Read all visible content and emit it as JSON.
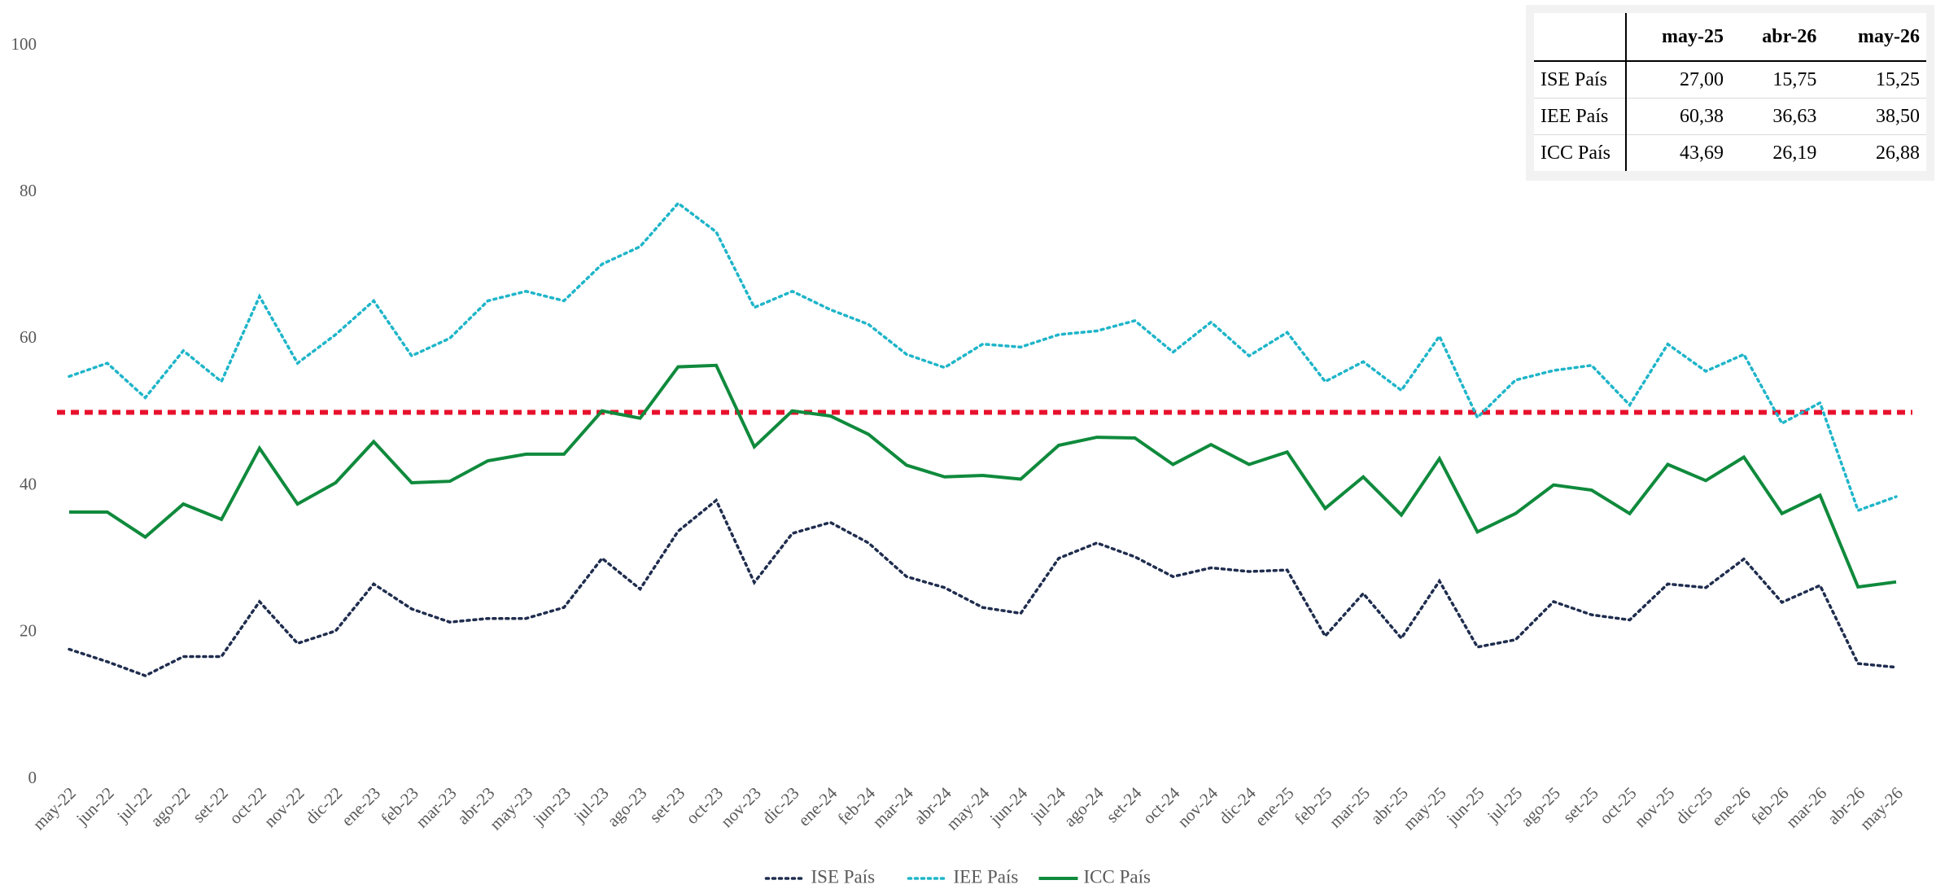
{
  "chart_data": {
    "type": "line",
    "categories": [
      "may-22",
      "jun-22",
      "jul-22",
      "ago-22",
      "set-22",
      "oct-22",
      "nov-22",
      "dic-22",
      "ene-23",
      "feb-23",
      "mar-23",
      "abr-23",
      "may-23",
      "jun-23",
      "jul-23",
      "ago-23",
      "set-23",
      "oct-23",
      "nov-23",
      "dic-23",
      "ene-24",
      "feb-24",
      "mar-24",
      "abr-24",
      "may-24",
      "jun-24",
      "jul-24",
      "ago-24",
      "set-24",
      "oct-24",
      "nov-24",
      "dic-24",
      "ene-25",
      "feb-25",
      "mar-25",
      "abr-25",
      "may-25",
      "jun-25",
      "jul-25",
      "ago-25",
      "set-25",
      "oct-25",
      "nov-25",
      "dic-25",
      "ene-26",
      "feb-26",
      "mar-26",
      "abr-26",
      "may-26"
    ],
    "series": [
      {
        "name": "ISE País",
        "color": "#1f2d4e",
        "style": "dotted",
        "values": [
          17.7,
          16,
          14.1,
          16.7,
          16.7,
          24.2,
          18.5,
          20.2,
          26.6,
          23.2,
          21.4,
          21.9,
          21.9,
          23.4,
          30.1,
          25.9,
          33.8,
          38.0,
          26.8,
          33.5,
          35.0,
          32.2,
          27.6,
          26.1,
          23.4,
          22.6,
          30.1,
          32.2,
          30.3,
          27.6,
          28.8,
          28.3,
          28.5,
          19.5,
          25.3,
          19.2,
          27.0,
          18.0,
          19.0,
          24.2,
          22.4,
          21.7,
          26.6,
          26.1,
          30.0,
          24.1,
          26.4,
          15.75,
          15.25
        ]
      },
      {
        "name": "IEE País",
        "color": "#1fb5c9",
        "style": "dotted",
        "values": [
          54.9,
          56.7,
          52.0,
          58.4,
          54.2,
          65.8,
          56.7,
          60.6,
          65.2,
          57.7,
          60.1,
          65.2,
          66.5,
          65.2,
          70.2,
          72.6,
          78.5,
          74.6,
          64.3,
          66.5,
          64.0,
          62.0,
          57.9,
          56.1,
          59.3,
          58.9,
          60.6,
          61.1,
          62.5,
          58.2,
          62.3,
          57.7,
          60.9,
          54.2,
          56.9,
          53.0,
          60.38,
          49.3,
          54.4,
          55.7,
          56.4,
          51.0,
          59.3,
          55.6,
          57.9,
          48.5,
          51.3,
          36.63,
          38.5
        ]
      },
      {
        "name": "ICC País",
        "color": "#0f8a3c",
        "style": "solid",
        "values": [
          36.4,
          36.4,
          33.0,
          37.5,
          35.4,
          45.1,
          37.5,
          40.4,
          46.0,
          40.4,
          40.6,
          43.4,
          44.3,
          44.3,
          50.2,
          49.2,
          56.2,
          56.4,
          45.3,
          50.2,
          49.5,
          47.0,
          42.8,
          41.2,
          41.4,
          40.9,
          45.5,
          46.6,
          46.5,
          42.9,
          45.6,
          42.9,
          44.6,
          36.9,
          41.2,
          36.0,
          43.69,
          33.7,
          36.2,
          40.1,
          39.4,
          36.2,
          42.9,
          40.7,
          43.9,
          36.2,
          38.7,
          26.19,
          26.88
        ]
      }
    ],
    "ylim": [
      0,
      100
    ],
    "yticks": [
      0,
      20,
      40,
      60,
      80,
      100
    ],
    "reference_line": {
      "value": 50,
      "color": "#e8112d"
    }
  },
  "table": {
    "columns": [
      "may-25",
      "abr-26",
      "may-26"
    ],
    "rows": [
      [
        "ISE País",
        "27,00",
        "15,75",
        "15,25"
      ],
      [
        "IEE País",
        "60,38",
        "36,63",
        "38,50"
      ],
      [
        "ICC País",
        "43,69",
        "26,19",
        "26,88"
      ]
    ]
  }
}
